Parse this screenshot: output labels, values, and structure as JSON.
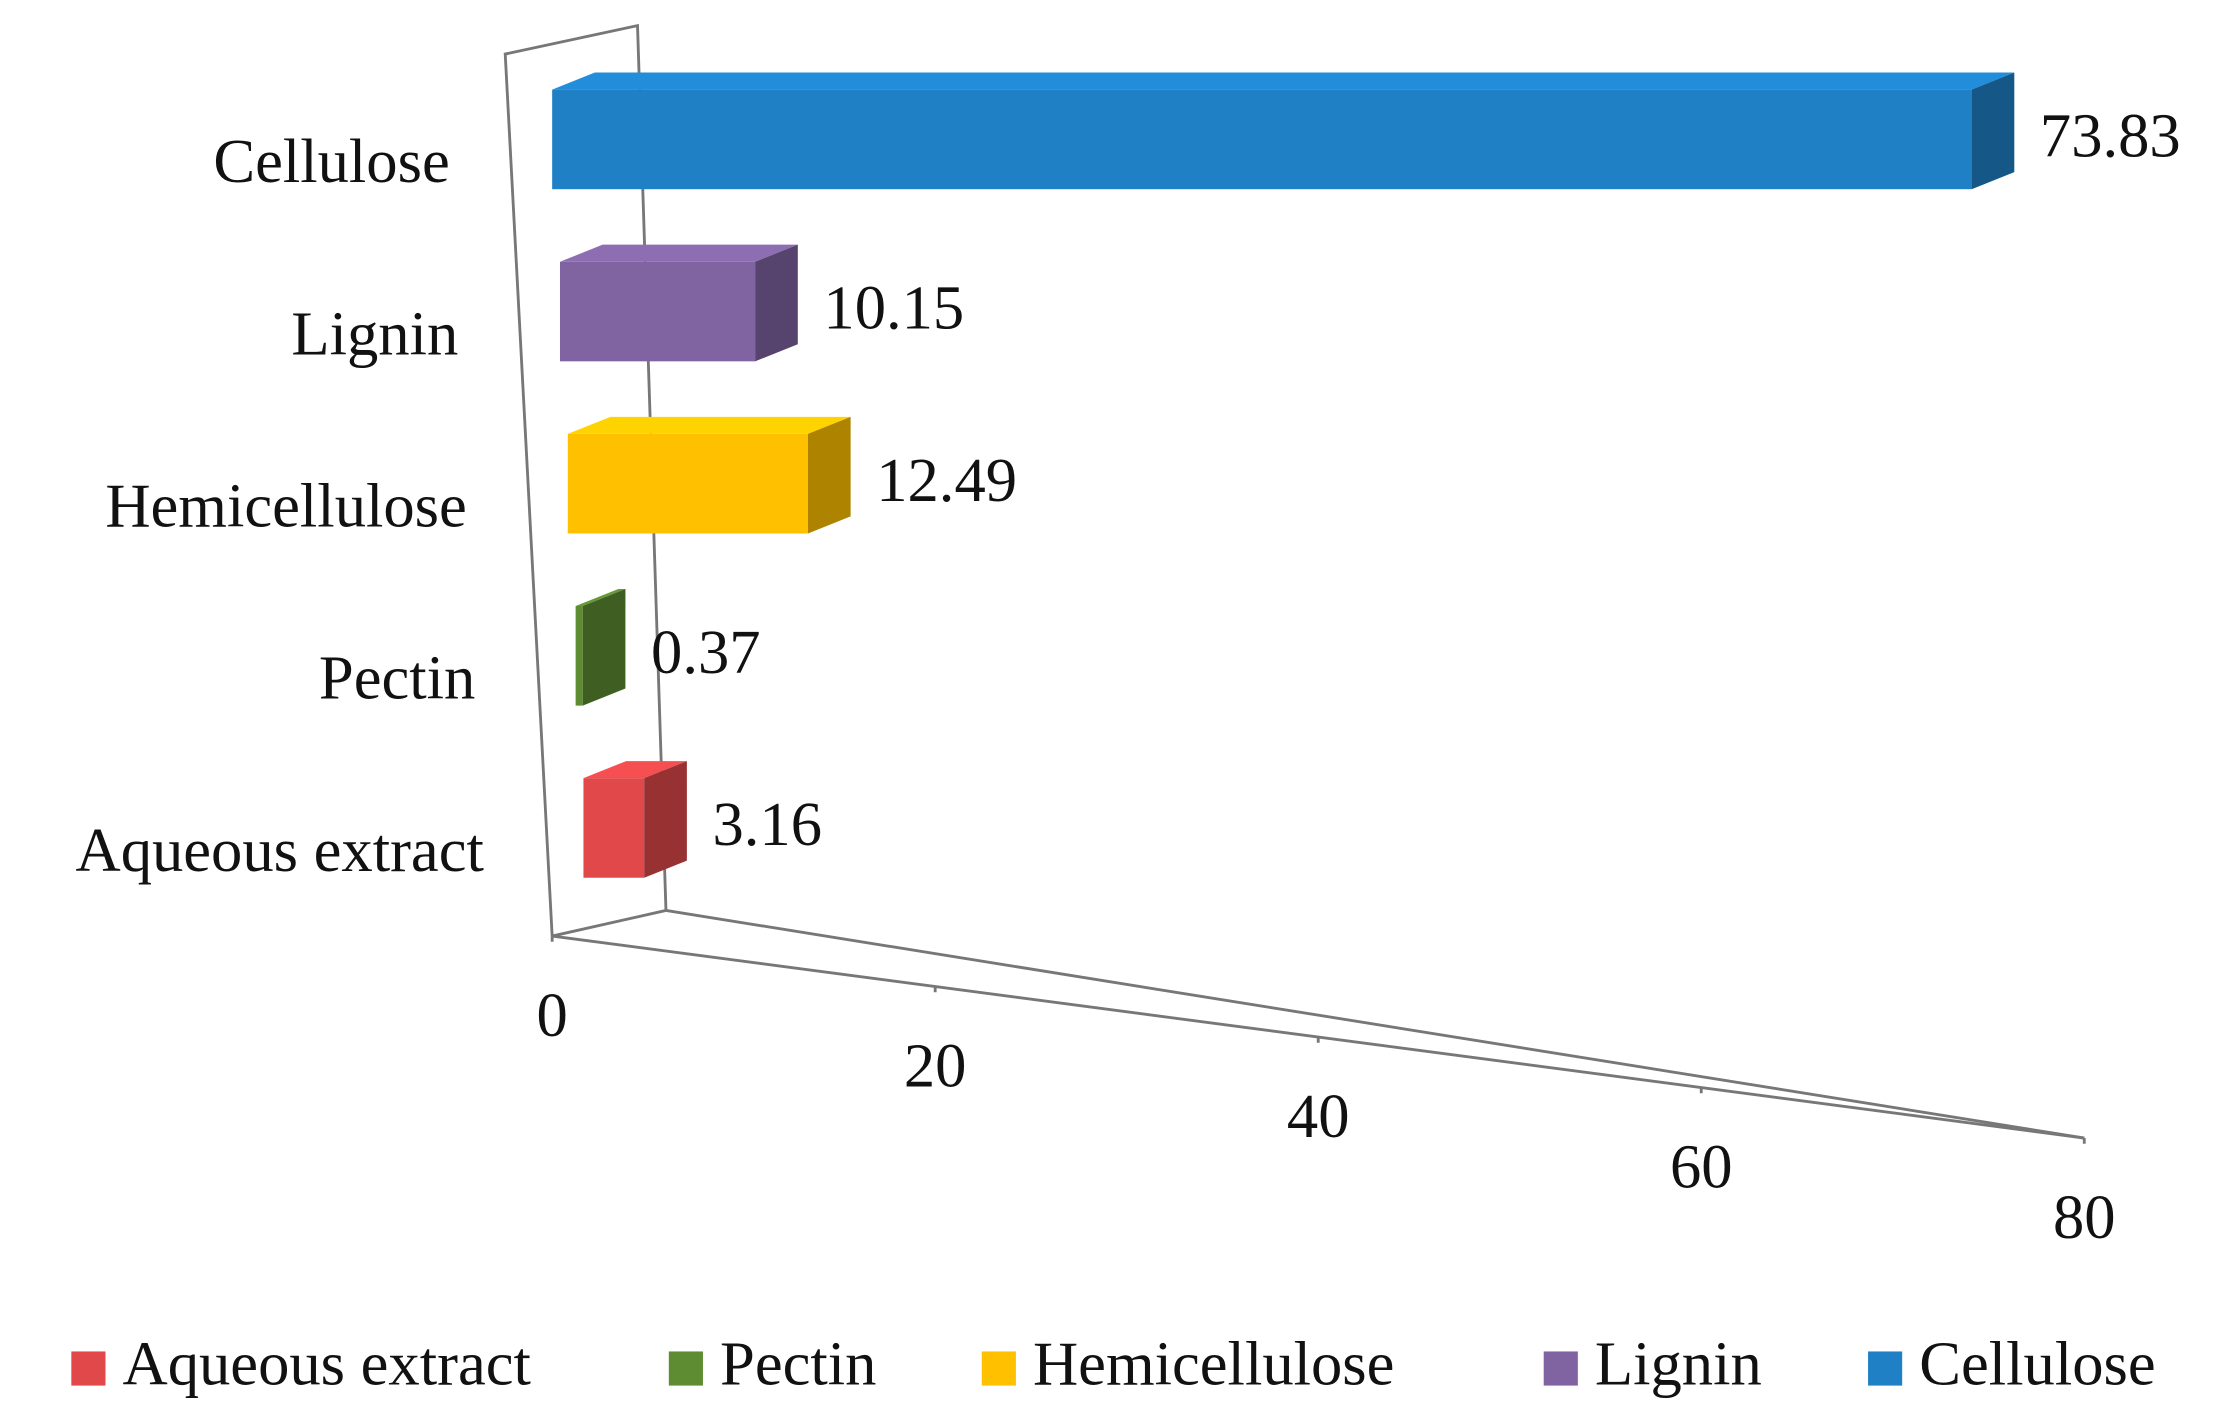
{
  "chart_data": {
    "type": "bar3d",
    "categories": [
      "Aqueous extract",
      "Pectin",
      "Hemicellulose",
      "Lignin",
      "Cellulose"
    ],
    "values": [
      3.16,
      0.37,
      12.49,
      10.15,
      73.83
    ],
    "colors": [
      "#e0484a",
      "#5d8c32",
      "#ffc000",
      "#8064a2",
      "#1f80c6"
    ],
    "xlim": [
      0,
      80
    ],
    "xticks": [
      0,
      20,
      40,
      60,
      80
    ]
  }
}
